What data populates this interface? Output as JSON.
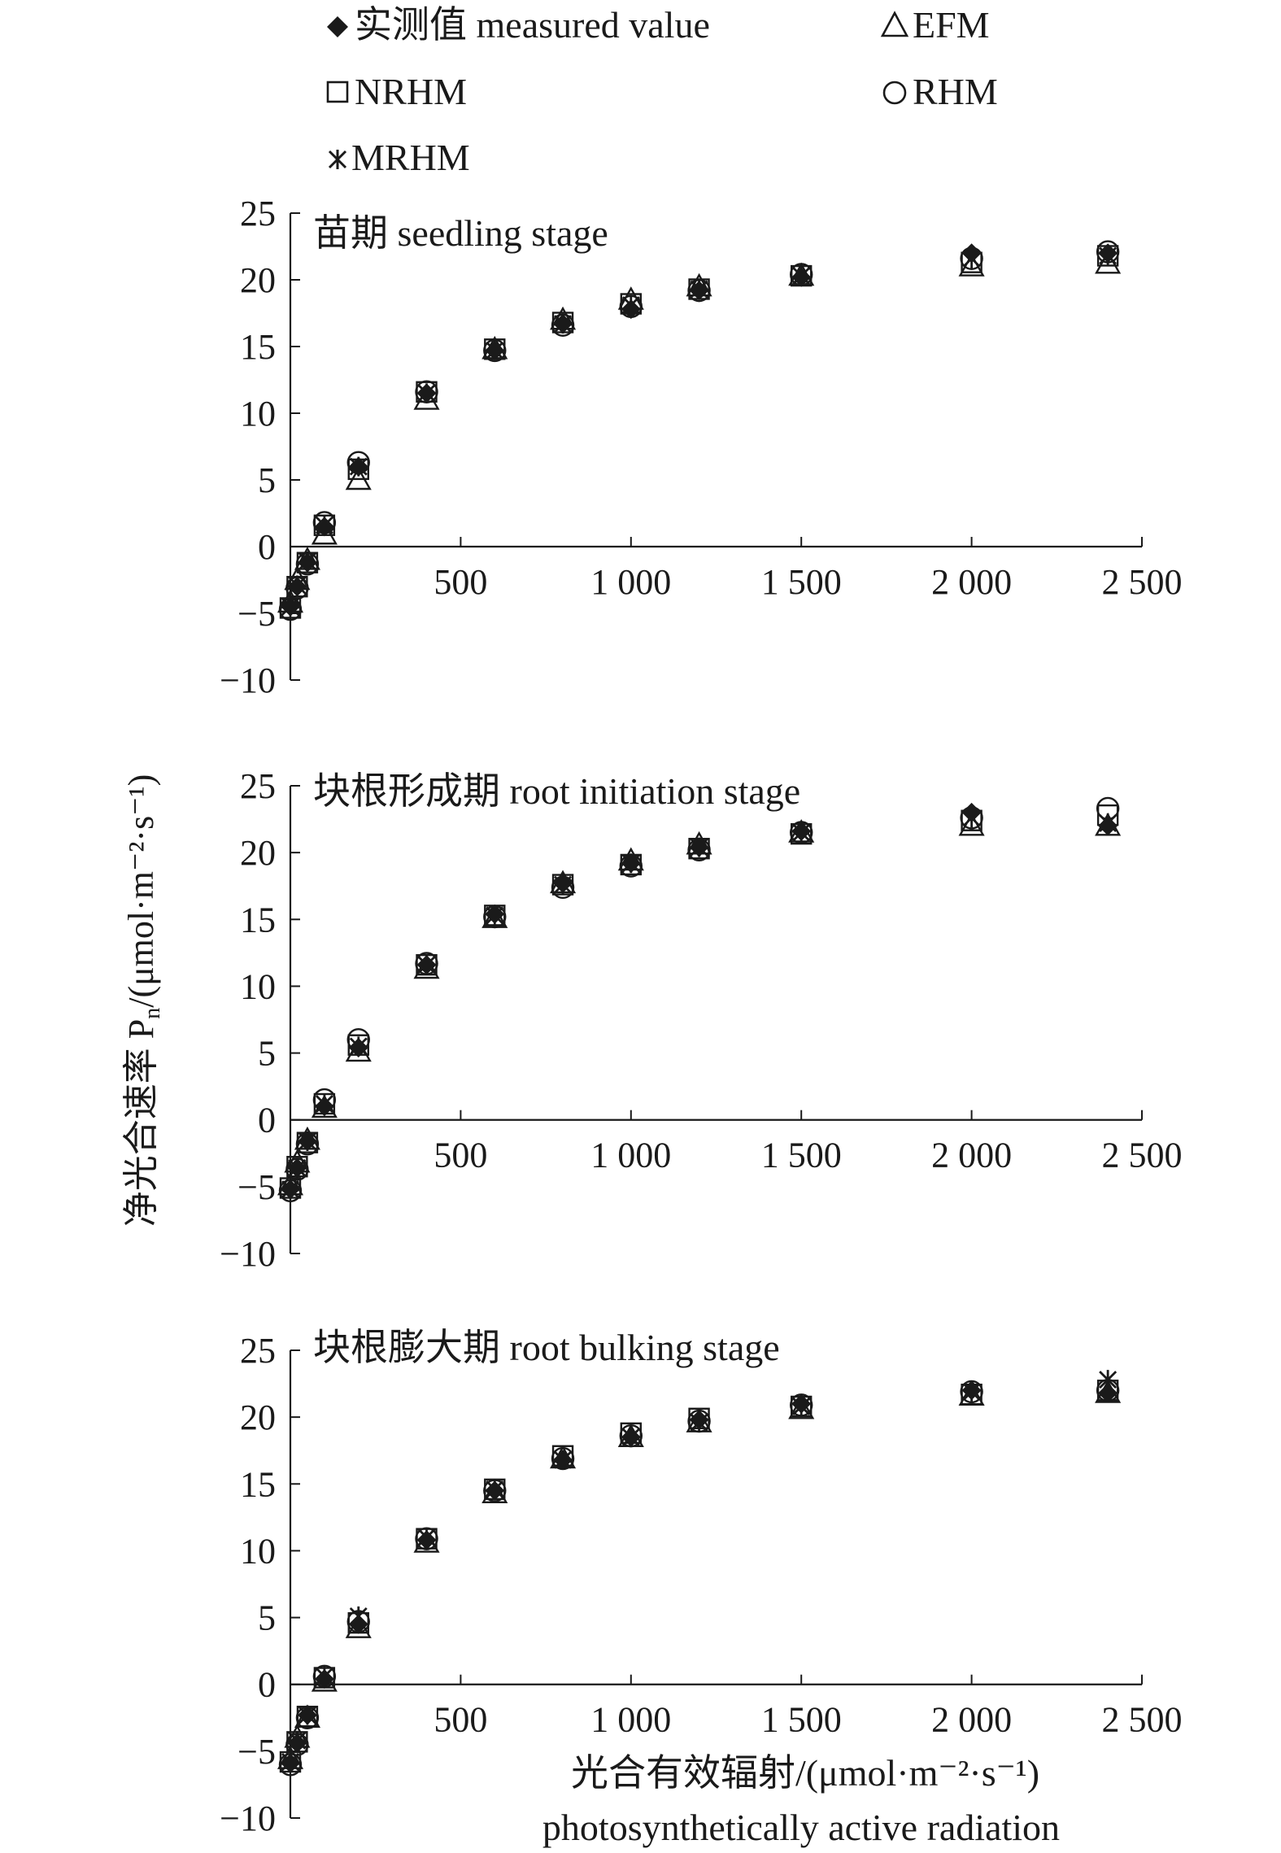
{
  "legend": {
    "items": [
      {
        "label": "实测值 measured value",
        "marker": "diamond-filled"
      },
      {
        "label": "EFM",
        "marker": "triangle-open"
      },
      {
        "label": "NRHM",
        "marker": "square-open"
      },
      {
        "label": "RHM",
        "marker": "circle-open"
      },
      {
        "label": "MRHM",
        "marker": "asterisk"
      }
    ]
  },
  "y_axis_title": "净光合速率 P",
  "y_axis_title_sub": "n",
  "y_axis_title_unit": "/(μmol·m⁻²·s⁻¹)",
  "x_axis_title": "光合有效辐射/(μmol·m⁻²·s⁻¹)",
  "x_axis_title_en": "photosynthetically active radiation",
  "colors": {
    "ink": "#1a1a1a",
    "background": "#ffffff"
  },
  "chart_data": [
    {
      "type": "scatter",
      "title": "苗期 seedling stage",
      "x": [
        0,
        20,
        50,
        100,
        200,
        400,
        600,
        800,
        1000,
        1200,
        1500,
        2000,
        2400
      ],
      "x_ticks": [
        500,
        1000,
        1500,
        2000,
        2500
      ],
      "x_tick_labels": [
        "500",
        "1 000",
        "1 500",
        "2 000",
        "2 500"
      ],
      "y_ticks": [
        25,
        20,
        15,
        10,
        5,
        0,
        -5,
        -10
      ],
      "y_tick_labels": [
        "25",
        "20",
        "15",
        "10",
        "5",
        "0",
        "−5",
        "−10"
      ],
      "xlim": [
        0,
        2500
      ],
      "ylim": [
        -10,
        25
      ],
      "series": [
        {
          "name": "实测值 measured value",
          "values": [
            -4.5,
            -3.0,
            -1.2,
            1.5,
            6.0,
            11.5,
            14.7,
            16.7,
            17.8,
            19.2,
            20.2,
            22.0,
            22.0
          ]
        },
        {
          "name": "EFM",
          "values": [
            -4.2,
            -2.5,
            -1.0,
            0.9,
            5.0,
            11.0,
            14.8,
            17.0,
            18.5,
            19.5,
            20.3,
            21.0,
            21.2
          ]
        },
        {
          "name": "NRHM",
          "values": [
            -4.6,
            -3.0,
            -1.2,
            1.6,
            5.8,
            11.6,
            14.8,
            16.8,
            18.2,
            19.3,
            20.3,
            21.3,
            21.8
          ]
        },
        {
          "name": "RHM",
          "values": [
            -4.7,
            -3.1,
            -1.3,
            1.8,
            6.3,
            11.6,
            14.7,
            16.6,
            18.0,
            19.2,
            20.4,
            21.6,
            22.1
          ]
        },
        {
          "name": "MRHM",
          "values": [
            -4.5,
            -2.9,
            -1.1,
            1.6,
            6.0,
            11.5,
            14.7,
            16.7,
            18.1,
            19.3,
            20.3,
            21.6,
            21.8
          ]
        }
      ]
    },
    {
      "type": "scatter",
      "title": "块根形成期 root initiation stage",
      "x": [
        0,
        20,
        50,
        100,
        200,
        400,
        600,
        800,
        1000,
        1200,
        1500,
        2000,
        2400
      ],
      "x_ticks": [
        500,
        1000,
        1500,
        2000,
        2500
      ],
      "x_tick_labels": [
        "500",
        "1 000",
        "1 500",
        "2 000",
        "2 500"
      ],
      "y_ticks": [
        25,
        20,
        15,
        10,
        5,
        0,
        -5,
        -10
      ],
      "y_tick_labels": [
        "25",
        "20",
        "15",
        "10",
        "5",
        "0",
        "−5",
        "−10"
      ],
      "xlim": [
        0,
        2500
      ],
      "ylim": [
        -10,
        25
      ],
      "series": [
        {
          "name": "实测值 measured value",
          "values": [
            -5.2,
            -3.6,
            -1.6,
            1.0,
            5.4,
            11.6,
            15.4,
            17.7,
            19.2,
            20.4,
            21.6,
            23.0,
            22.0
          ]
        },
        {
          "name": "EFM",
          "values": [
            -4.9,
            -3.2,
            -1.5,
            0.9,
            5.1,
            11.3,
            15.1,
            17.7,
            19.4,
            20.6,
            21.5,
            22.0,
            22.0
          ]
        },
        {
          "name": "NRHM",
          "values": [
            -5.1,
            -3.5,
            -1.7,
            1.2,
            5.6,
            11.6,
            15.3,
            17.6,
            19.1,
            20.3,
            21.4,
            22.4,
            22.8
          ]
        },
        {
          "name": "RHM",
          "values": [
            -5.3,
            -3.7,
            -1.8,
            1.5,
            6.0,
            11.7,
            15.2,
            17.4,
            19.0,
            20.2,
            21.5,
            22.6,
            23.3
          ]
        },
        {
          "name": "MRHM",
          "values": [
            -5.2,
            -3.6,
            -1.6,
            1.2,
            5.5,
            11.6,
            15.3,
            17.6,
            19.2,
            20.4,
            21.5,
            22.6,
            22.2
          ]
        }
      ]
    },
    {
      "type": "scatter",
      "title": "块根膨大期 root bulking stage",
      "x": [
        0,
        20,
        50,
        100,
        200,
        400,
        600,
        800,
        1000,
        1200,
        1500,
        2000,
        2400
      ],
      "x_ticks": [
        500,
        1000,
        1500,
        2000,
        2500
      ],
      "x_tick_labels": [
        "500",
        "1 000",
        "1 500",
        "2 000",
        "2 500"
      ],
      "y_ticks": [
        25,
        20,
        15,
        10,
        5,
        0,
        -5,
        -10
      ],
      "y_tick_labels": [
        "25",
        "20",
        "15",
        "10",
        "5",
        "0",
        "−5",
        "−10"
      ],
      "xlim": [
        0,
        2500
      ],
      "ylim": [
        -10,
        25
      ],
      "series": [
        {
          "name": "实测值 measured value",
          "values": [
            -5.9,
            -4.4,
            -2.3,
            0.4,
            4.5,
            10.8,
            14.5,
            16.8,
            18.5,
            19.8,
            21.0,
            22.0,
            21.8
          ]
        },
        {
          "name": "EFM",
          "values": [
            -5.6,
            -4.0,
            -2.5,
            0.2,
            4.2,
            10.6,
            14.3,
            16.9,
            18.5,
            19.6,
            20.6,
            21.6,
            21.8
          ]
        },
        {
          "name": "NRHM",
          "values": [
            -5.8,
            -4.3,
            -2.4,
            0.5,
            4.6,
            10.9,
            14.6,
            17.1,
            18.8,
            19.9,
            20.8,
            21.7,
            22.0
          ]
        },
        {
          "name": "RHM",
          "values": [
            -6.0,
            -4.5,
            -2.5,
            0.6,
            4.7,
            10.9,
            14.5,
            16.9,
            18.6,
            19.7,
            20.9,
            21.9,
            22.0
          ]
        },
        {
          "name": "MRHM",
          "values": [
            -5.8,
            -4.2,
            -2.3,
            0.6,
            5.1,
            11.0,
            14.6,
            16.8,
            18.5,
            19.6,
            20.8,
            21.9,
            22.8
          ]
        }
      ]
    }
  ]
}
